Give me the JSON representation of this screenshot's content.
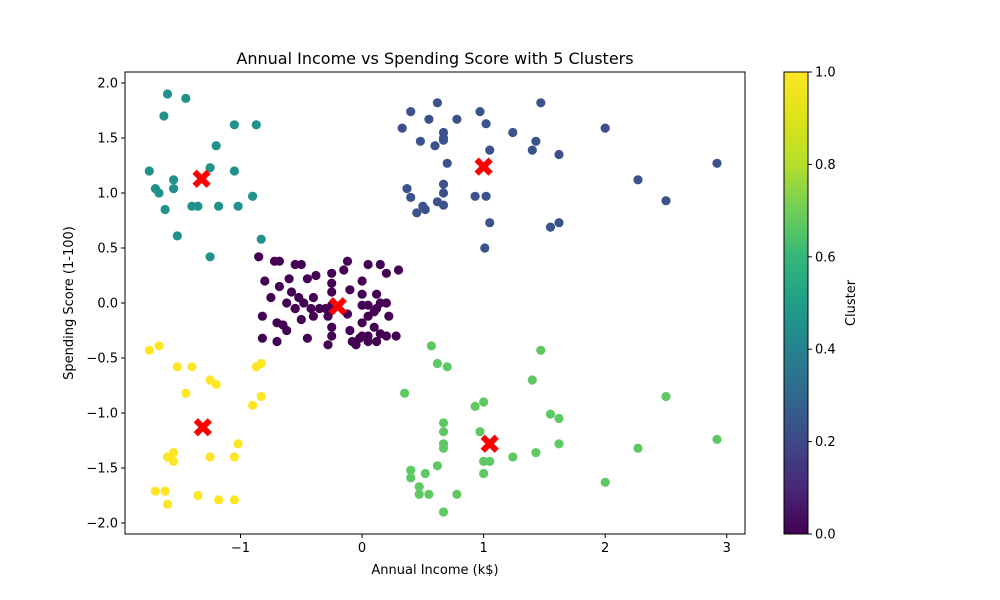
{
  "chart_data": {
    "type": "scatter",
    "title": "Annual Income vs Spending Score with 5 Clusters",
    "xlabel": "Annual Income (k$)",
    "ylabel": "Spending Score (1-100)",
    "xlim": [
      -1.95,
      3.15
    ],
    "ylim": [
      -2.1,
      2.1
    ],
    "xticks": [
      -1,
      0,
      1,
      2,
      3
    ],
    "yticks": [
      -2.0,
      -1.5,
      -1.0,
      -0.5,
      0.0,
      0.5,
      1.0,
      1.5,
      2.0
    ],
    "grid": false,
    "colorbar": {
      "label": "Cluster",
      "range": [
        0.0,
        1.0
      ],
      "ticks": [
        0.0,
        0.2,
        0.4,
        0.6,
        0.8,
        1.0
      ],
      "colormap": "viridis"
    },
    "centroid_color": "#ff0000",
    "series": [
      {
        "cluster": 0,
        "color": "#440154",
        "points": [
          [
            -0.85,
            0.42
          ],
          [
            -0.8,
            0.2
          ],
          [
            -0.72,
            0.38
          ],
          [
            -0.68,
            0.38
          ],
          [
            -0.55,
            0.35
          ],
          [
            -0.5,
            0.35
          ],
          [
            -0.45,
            0.22
          ],
          [
            -0.38,
            0.25
          ],
          [
            -0.25,
            0.27
          ],
          [
            -0.25,
            0.18
          ],
          [
            -0.12,
            0.38
          ],
          [
            -0.15,
            0.3
          ],
          [
            0.05,
            0.35
          ],
          [
            0.15,
            0.35
          ],
          [
            0.3,
            0.3
          ],
          [
            0.2,
            0.27
          ],
          [
            -0.75,
            0.05
          ],
          [
            -0.68,
            0.15
          ],
          [
            -0.6,
            0.22
          ],
          [
            -0.58,
            0.1
          ],
          [
            -0.52,
            0.05
          ],
          [
            -0.48,
            0.0
          ],
          [
            -0.42,
            -0.05
          ],
          [
            -0.55,
            -0.05
          ],
          [
            -0.62,
            0.0
          ],
          [
            -0.7,
            -0.18
          ],
          [
            -0.65,
            -0.2
          ],
          [
            -0.82,
            -0.12
          ],
          [
            -0.5,
            -0.15
          ],
          [
            -0.4,
            -0.12
          ],
          [
            -0.35,
            -0.05
          ],
          [
            -0.25,
            -0.02
          ],
          [
            -0.25,
            0.1
          ],
          [
            -0.28,
            -0.12
          ],
          [
            -0.25,
            -0.3
          ],
          [
            -0.25,
            -0.22
          ],
          [
            -0.28,
            -0.38
          ],
          [
            -0.12,
            -0.1
          ],
          [
            -0.1,
            -0.25
          ],
          [
            0.0,
            0.2
          ],
          [
            0.0,
            0.08
          ],
          [
            0.0,
            -0.02
          ],
          [
            0.05,
            -0.02
          ],
          [
            0.1,
            -0.08
          ],
          [
            0.12,
            -0.05
          ],
          [
            0.15,
            0.0
          ],
          [
            0.12,
            0.08
          ],
          [
            0.2,
            0.0
          ],
          [
            0.22,
            -0.12
          ],
          [
            0.05,
            -0.12
          ],
          [
            0.0,
            -0.18
          ],
          [
            0.1,
            -0.22
          ],
          [
            0.15,
            -0.28
          ],
          [
            0.2,
            -0.3
          ],
          [
            0.28,
            -0.3
          ],
          [
            0.05,
            -0.3
          ],
          [
            0.0,
            -0.3
          ],
          [
            -0.05,
            -0.38
          ],
          [
            -0.08,
            -0.35
          ],
          [
            0.05,
            -0.35
          ],
          [
            0.12,
            -0.35
          ],
          [
            -0.02,
            -0.32
          ],
          [
            -0.82,
            -0.32
          ],
          [
            -0.7,
            -0.35
          ],
          [
            -0.55,
            -0.05
          ],
          [
            -0.45,
            -0.32
          ],
          [
            -0.3,
            -0.05
          ],
          [
            -0.1,
            0.12
          ],
          [
            -0.62,
            -0.25
          ],
          [
            -0.4,
            0.05
          ]
        ]
      },
      {
        "cluster": 1,
        "color": "#3b528b",
        "points": [
          [
            0.33,
            1.59
          ],
          [
            0.4,
            1.74
          ],
          [
            0.48,
            1.47
          ],
          [
            0.55,
            1.67
          ],
          [
            0.6,
            1.43
          ],
          [
            0.62,
            1.82
          ],
          [
            0.67,
            1.55
          ],
          [
            0.67,
            1.5
          ],
          [
            0.7,
            1.27
          ],
          [
            0.78,
            1.67
          ],
          [
            0.97,
            1.74
          ],
          [
            1.02,
            1.63
          ],
          [
            1.05,
            1.39
          ],
          [
            1.24,
            1.55
          ],
          [
            1.4,
            1.39
          ],
          [
            1.43,
            1.47
          ],
          [
            1.47,
            1.82
          ],
          [
            1.62,
            1.35
          ],
          [
            2.0,
            1.59
          ],
          [
            2.27,
            1.12
          ],
          [
            2.5,
            0.93
          ],
          [
            2.92,
            1.27
          ],
          [
            0.37,
            1.04
          ],
          [
            0.4,
            0.96
          ],
          [
            0.45,
            0.82
          ],
          [
            0.5,
            0.88
          ],
          [
            0.52,
            0.85
          ],
          [
            0.62,
            0.92
          ],
          [
            0.67,
            0.89
          ],
          [
            0.67,
            1.0
          ],
          [
            0.67,
            1.08
          ],
          [
            0.93,
            0.97
          ],
          [
            1.02,
            0.97
          ],
          [
            1.05,
            0.73
          ],
          [
            1.01,
            0.5
          ],
          [
            1.55,
            0.69
          ],
          [
            1.62,
            0.73
          ],
          [
            0.67,
            1.48
          ]
        ]
      },
      {
        "cluster": 2,
        "color": "#21918c",
        "points": [
          [
            -1.6,
            1.9
          ],
          [
            -1.45,
            1.86
          ],
          [
            -1.63,
            1.7
          ],
          [
            -1.05,
            1.62
          ],
          [
            -0.87,
            1.62
          ],
          [
            -1.2,
            1.43
          ],
          [
            -1.25,
            1.23
          ],
          [
            -1.05,
            1.2
          ],
          [
            -1.75,
            1.2
          ],
          [
            -1.55,
            1.12
          ],
          [
            -1.7,
            1.04
          ],
          [
            -1.67,
            1.0
          ],
          [
            -1.55,
            1.04
          ],
          [
            -1.62,
            0.85
          ],
          [
            -1.4,
            0.88
          ],
          [
            -1.35,
            0.88
          ],
          [
            -1.18,
            0.88
          ],
          [
            -1.02,
            0.88
          ],
          [
            -0.9,
            0.97
          ],
          [
            -1.52,
            0.61
          ],
          [
            -0.83,
            0.58
          ],
          [
            -1.25,
            0.42
          ]
        ]
      },
      {
        "cluster": 3,
        "color": "#5ec962",
        "points": [
          [
            0.57,
            -0.39
          ],
          [
            0.62,
            -0.55
          ],
          [
            0.7,
            -0.58
          ],
          [
            1.47,
            -0.43
          ],
          [
            1.4,
            -0.7
          ],
          [
            0.35,
            -0.82
          ],
          [
            0.93,
            -0.94
          ],
          [
            1.0,
            -0.9
          ],
          [
            1.55,
            -1.01
          ],
          [
            1.62,
            -1.05
          ],
          [
            2.5,
            -0.85
          ],
          [
            2.92,
            -1.24
          ],
          [
            0.67,
            -1.09
          ],
          [
            0.67,
            -1.17
          ],
          [
            0.97,
            -1.17
          ],
          [
            0.67,
            -1.28
          ],
          [
            0.67,
            -1.32
          ],
          [
            1.62,
            -1.28
          ],
          [
            2.27,
            -1.32
          ],
          [
            1.43,
            -1.36
          ],
          [
            1.24,
            -1.4
          ],
          [
            1.0,
            -1.44
          ],
          [
            1.05,
            -1.44
          ],
          [
            1.0,
            -1.55
          ],
          [
            0.62,
            -1.48
          ],
          [
            0.4,
            -1.52
          ],
          [
            0.52,
            -1.55
          ],
          [
            0.4,
            -1.59
          ],
          [
            2.0,
            -1.63
          ],
          [
            0.47,
            -1.67
          ],
          [
            0.47,
            -1.74
          ],
          [
            0.55,
            -1.74
          ],
          [
            0.78,
            -1.74
          ],
          [
            0.67,
            -1.9
          ]
        ]
      },
      {
        "cluster": 4,
        "color": "#fde725",
        "points": [
          [
            -1.75,
            -0.43
          ],
          [
            -1.67,
            -0.39
          ],
          [
            -1.52,
            -0.58
          ],
          [
            -1.4,
            -0.58
          ],
          [
            -1.25,
            -0.7
          ],
          [
            -1.2,
            -0.74
          ],
          [
            -0.87,
            -0.58
          ],
          [
            -0.83,
            -0.55
          ],
          [
            -1.45,
            -0.82
          ],
          [
            -0.83,
            -0.85
          ],
          [
            -0.9,
            -0.93
          ],
          [
            -1.02,
            -1.28
          ],
          [
            -1.55,
            -1.36
          ],
          [
            -1.6,
            -1.4
          ],
          [
            -1.55,
            -1.44
          ],
          [
            -1.25,
            -1.4
          ],
          [
            -1.05,
            -1.4
          ],
          [
            -1.7,
            -1.71
          ],
          [
            -1.62,
            -1.71
          ],
          [
            -1.35,
            -1.75
          ],
          [
            -1.18,
            -1.79
          ],
          [
            -1.05,
            -1.79
          ],
          [
            -1.6,
            -1.83
          ]
        ]
      }
    ],
    "centroids": [
      [
        -0.2,
        -0.03
      ],
      [
        1.0,
        1.24
      ],
      [
        -1.32,
        1.13
      ],
      [
        1.05,
        -1.28
      ],
      [
        -1.31,
        -1.13
      ]
    ]
  }
}
